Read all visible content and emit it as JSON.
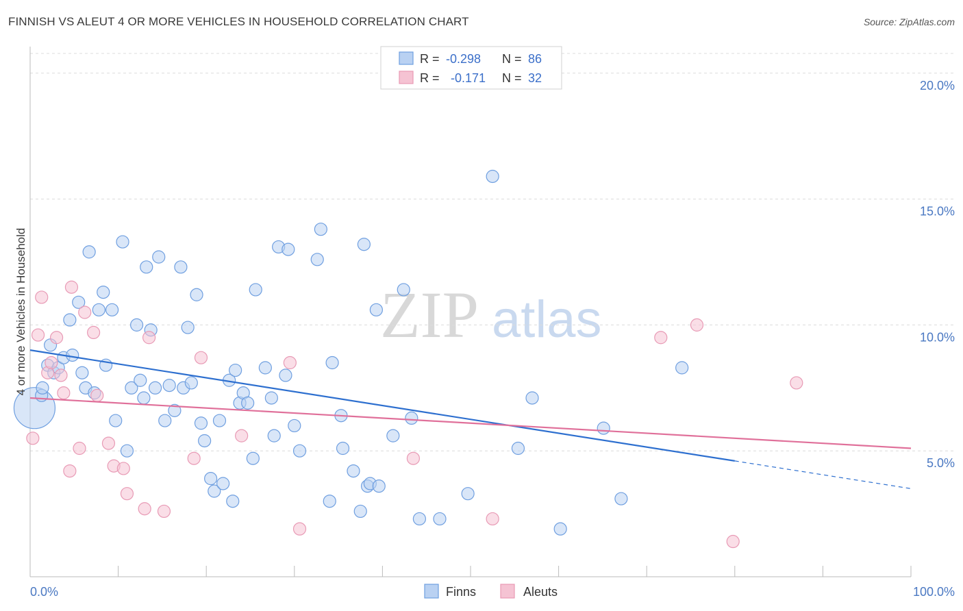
{
  "title": "FINNISH VS ALEUT 4 OR MORE VEHICLES IN HOUSEHOLD CORRELATION CHART",
  "source": "Source: ZipAtlas.com",
  "watermark": {
    "zip": "ZIP",
    "atlas": "atlas"
  },
  "chart_data": {
    "type": "scatter",
    "ylabel": "4 or more Vehicles in Household",
    "xlim": [
      0,
      100
    ],
    "ylim": [
      0,
      21
    ],
    "x_tick_labels": [
      "0.0%",
      "100.0%"
    ],
    "y_ticks": [
      5,
      10,
      15,
      20
    ],
    "y_tick_labels": [
      "5.0%",
      "10.0%",
      "15.0%",
      "20.0%"
    ],
    "grid": true,
    "legend_top": [
      {
        "r_label": "R = ",
        "r_value": "-0.298",
        "n_label": "N = ",
        "n_value": "86"
      },
      {
        "r_label": "R = ",
        "r_value": "-0.171",
        "n_label": "N = ",
        "n_value": "32"
      }
    ],
    "series": [
      {
        "name": "Finns",
        "color": "#6f9fe0",
        "fill": "#b9d1f2",
        "trend": {
          "x0": 0,
          "y0": 9.0,
          "x1": 80,
          "y1": 4.6,
          "dash_x1": 100,
          "dash_y1": 3.5,
          "color": "#2d6fcf"
        },
        "points": [
          [
            0.5,
            6.7,
            30
          ],
          [
            1.3,
            7.2,
            9
          ],
          [
            1.4,
            7.5,
            9
          ],
          [
            2.0,
            8.4,
            9
          ],
          [
            2.3,
            9.2,
            9
          ],
          [
            2.7,
            8.1,
            9
          ],
          [
            3.2,
            8.3,
            9
          ],
          [
            3.8,
            8.7,
            9
          ],
          [
            4.5,
            10.2,
            9
          ],
          [
            4.8,
            8.8,
            9
          ],
          [
            5.5,
            10.9,
            9
          ],
          [
            5.9,
            8.1,
            9
          ],
          [
            6.3,
            7.5,
            9
          ],
          [
            6.7,
            12.9,
            9
          ],
          [
            7.3,
            7.3,
            9
          ],
          [
            7.8,
            10.6,
            9
          ],
          [
            8.3,
            11.3,
            9
          ],
          [
            8.6,
            8.4,
            9
          ],
          [
            9.3,
            10.6,
            9
          ],
          [
            9.7,
            6.2,
            9
          ],
          [
            10.5,
            13.3,
            9
          ],
          [
            11.0,
            5.0,
            9
          ],
          [
            11.5,
            7.5,
            9
          ],
          [
            12.1,
            10.0,
            9
          ],
          [
            12.5,
            7.8,
            9
          ],
          [
            12.9,
            7.1,
            9
          ],
          [
            13.2,
            12.3,
            9
          ],
          [
            13.7,
            9.8,
            9
          ],
          [
            14.2,
            7.5,
            9
          ],
          [
            14.6,
            12.7,
            9
          ],
          [
            15.3,
            6.2,
            9
          ],
          [
            15.8,
            7.6,
            9
          ],
          [
            16.4,
            6.6,
            9
          ],
          [
            17.1,
            12.3,
            9
          ],
          [
            17.4,
            7.5,
            9
          ],
          [
            17.9,
            9.9,
            9
          ],
          [
            18.3,
            7.7,
            9
          ],
          [
            18.9,
            11.2,
            9
          ],
          [
            19.4,
            6.1,
            9
          ],
          [
            19.8,
            5.4,
            9
          ],
          [
            20.5,
            3.9,
            9
          ],
          [
            20.9,
            3.4,
            9
          ],
          [
            21.5,
            6.2,
            9
          ],
          [
            21.9,
            3.7,
            9
          ],
          [
            22.6,
            7.8,
            9
          ],
          [
            23.0,
            3.0,
            9
          ],
          [
            23.3,
            8.2,
            9
          ],
          [
            23.8,
            6.9,
            9
          ],
          [
            24.2,
            7.3,
            9
          ],
          [
            24.7,
            6.9,
            9
          ],
          [
            25.3,
            4.7,
            9
          ],
          [
            25.6,
            11.4,
            9
          ],
          [
            26.7,
            8.3,
            9
          ],
          [
            27.4,
            7.1,
            9
          ],
          [
            27.7,
            5.6,
            9
          ],
          [
            28.2,
            13.1,
            9
          ],
          [
            29.0,
            8.0,
            9
          ],
          [
            29.3,
            13.0,
            9
          ],
          [
            30.0,
            6.0,
            9
          ],
          [
            30.6,
            5.0,
            9
          ],
          [
            32.6,
            12.6,
            9
          ],
          [
            33.0,
            13.8,
            9
          ],
          [
            34.0,
            3.0,
            9
          ],
          [
            34.3,
            8.5,
            9
          ],
          [
            35.3,
            6.4,
            9
          ],
          [
            35.5,
            5.1,
            9
          ],
          [
            36.7,
            4.2,
            9
          ],
          [
            37.5,
            2.6,
            9
          ],
          [
            37.9,
            13.2,
            9
          ],
          [
            38.3,
            3.6,
            9
          ],
          [
            38.6,
            3.7,
            9
          ],
          [
            39.3,
            10.6,
            9
          ],
          [
            39.6,
            3.6,
            9
          ],
          [
            41.2,
            5.6,
            9
          ],
          [
            42.4,
            11.4,
            9
          ],
          [
            43.3,
            6.3,
            9
          ],
          [
            44.2,
            2.3,
            9
          ],
          [
            46.5,
            2.3,
            9
          ],
          [
            49.7,
            3.3,
            9
          ],
          [
            52.5,
            15.9,
            9
          ],
          [
            55.4,
            5.1,
            9
          ],
          [
            57.0,
            7.1,
            9
          ],
          [
            60.2,
            1.9,
            9
          ],
          [
            65.1,
            5.9,
            9
          ],
          [
            67.1,
            3.1,
            9
          ],
          [
            74.0,
            8.3,
            9
          ]
        ]
      },
      {
        "name": "Aleuts",
        "color": "#e89ab5",
        "fill": "#f5c3d3",
        "trend": {
          "x0": 0,
          "y0": 7.1,
          "x1": 100,
          "y1": 5.1,
          "color": "#e0709a"
        },
        "points": [
          [
            0.3,
            5.5,
            9
          ],
          [
            0.9,
            9.6,
            9
          ],
          [
            1.3,
            11.1,
            9
          ],
          [
            2.0,
            8.1,
            9
          ],
          [
            2.4,
            8.5,
            9
          ],
          [
            3.0,
            9.5,
            9
          ],
          [
            3.5,
            8.0,
            9
          ],
          [
            3.8,
            7.3,
            9
          ],
          [
            4.5,
            4.2,
            9
          ],
          [
            4.7,
            11.5,
            9
          ],
          [
            5.6,
            5.1,
            9
          ],
          [
            6.2,
            10.5,
            9
          ],
          [
            7.2,
            9.7,
            9
          ],
          [
            7.6,
            7.2,
            9
          ],
          [
            8.9,
            5.3,
            9
          ],
          [
            9.5,
            4.4,
            9
          ],
          [
            10.6,
            4.3,
            9
          ],
          [
            11.0,
            3.3,
            9
          ],
          [
            13.0,
            2.7,
            9
          ],
          [
            13.5,
            9.5,
            9
          ],
          [
            15.2,
            2.6,
            9
          ],
          [
            18.6,
            4.7,
            9
          ],
          [
            19.4,
            8.7,
            9
          ],
          [
            24.0,
            5.6,
            9
          ],
          [
            29.5,
            8.5,
            9
          ],
          [
            30.6,
            1.9,
            9
          ],
          [
            43.5,
            4.7,
            9
          ],
          [
            52.5,
            2.3,
            9
          ],
          [
            71.6,
            9.5,
            9
          ],
          [
            75.7,
            10.0,
            9
          ],
          [
            79.8,
            1.4,
            9
          ],
          [
            87.0,
            7.7,
            9
          ]
        ]
      }
    ]
  }
}
